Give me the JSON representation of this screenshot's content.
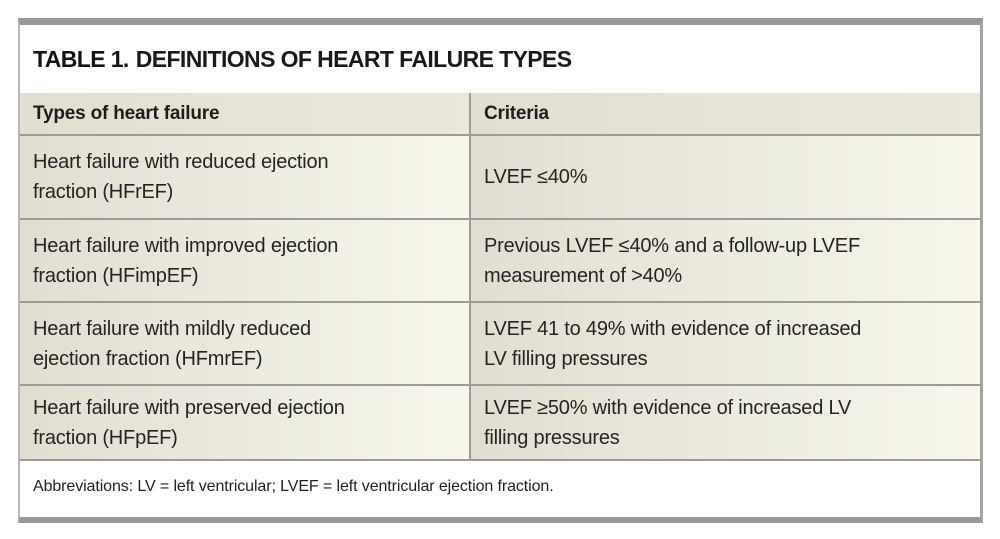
{
  "title": {
    "prefix": "TABLE 1.",
    "text": "DEFINITIONS OF HEART FAILURE TYPES"
  },
  "table": {
    "columns": [
      "Types of heart failure",
      "Criteria"
    ],
    "rows": [
      {
        "type": "Heart failure with reduced ejection\nfraction (HFrEF)",
        "criteria": "LVEF ≤40%"
      },
      {
        "type": "Heart failure with improved ejection\nfraction (HFimpEF)",
        "criteria": "Previous LVEF ≤40% and a follow-up LVEF\nmeasurement of >40%"
      },
      {
        "type": "Heart failure with mildly reduced\nejection fraction (HFmrEF)",
        "criteria": "LVEF 41 to 49% with evidence of increased\nLV filling pressures"
      },
      {
        "type": "Heart failure with preserved ejection\nfraction (HFpEF)",
        "criteria": "LVEF ≥50% with evidence of increased LV\nfilling pressures"
      }
    ]
  },
  "footnote": "Abbreviations: LV = left ventricular; LVEF = left ventricular ejection fraction.",
  "colors": {
    "bar_gray": "#98999b",
    "divider_gray": "#9b9c98",
    "header_beige_left": "#e0dfd1",
    "header_beige_right": "#eae9db",
    "cell_beige_left": "#e0ded1",
    "cell_cream_right": "#f8f7ec",
    "text_dark": "#262422",
    "page_background": "#ffffff"
  }
}
